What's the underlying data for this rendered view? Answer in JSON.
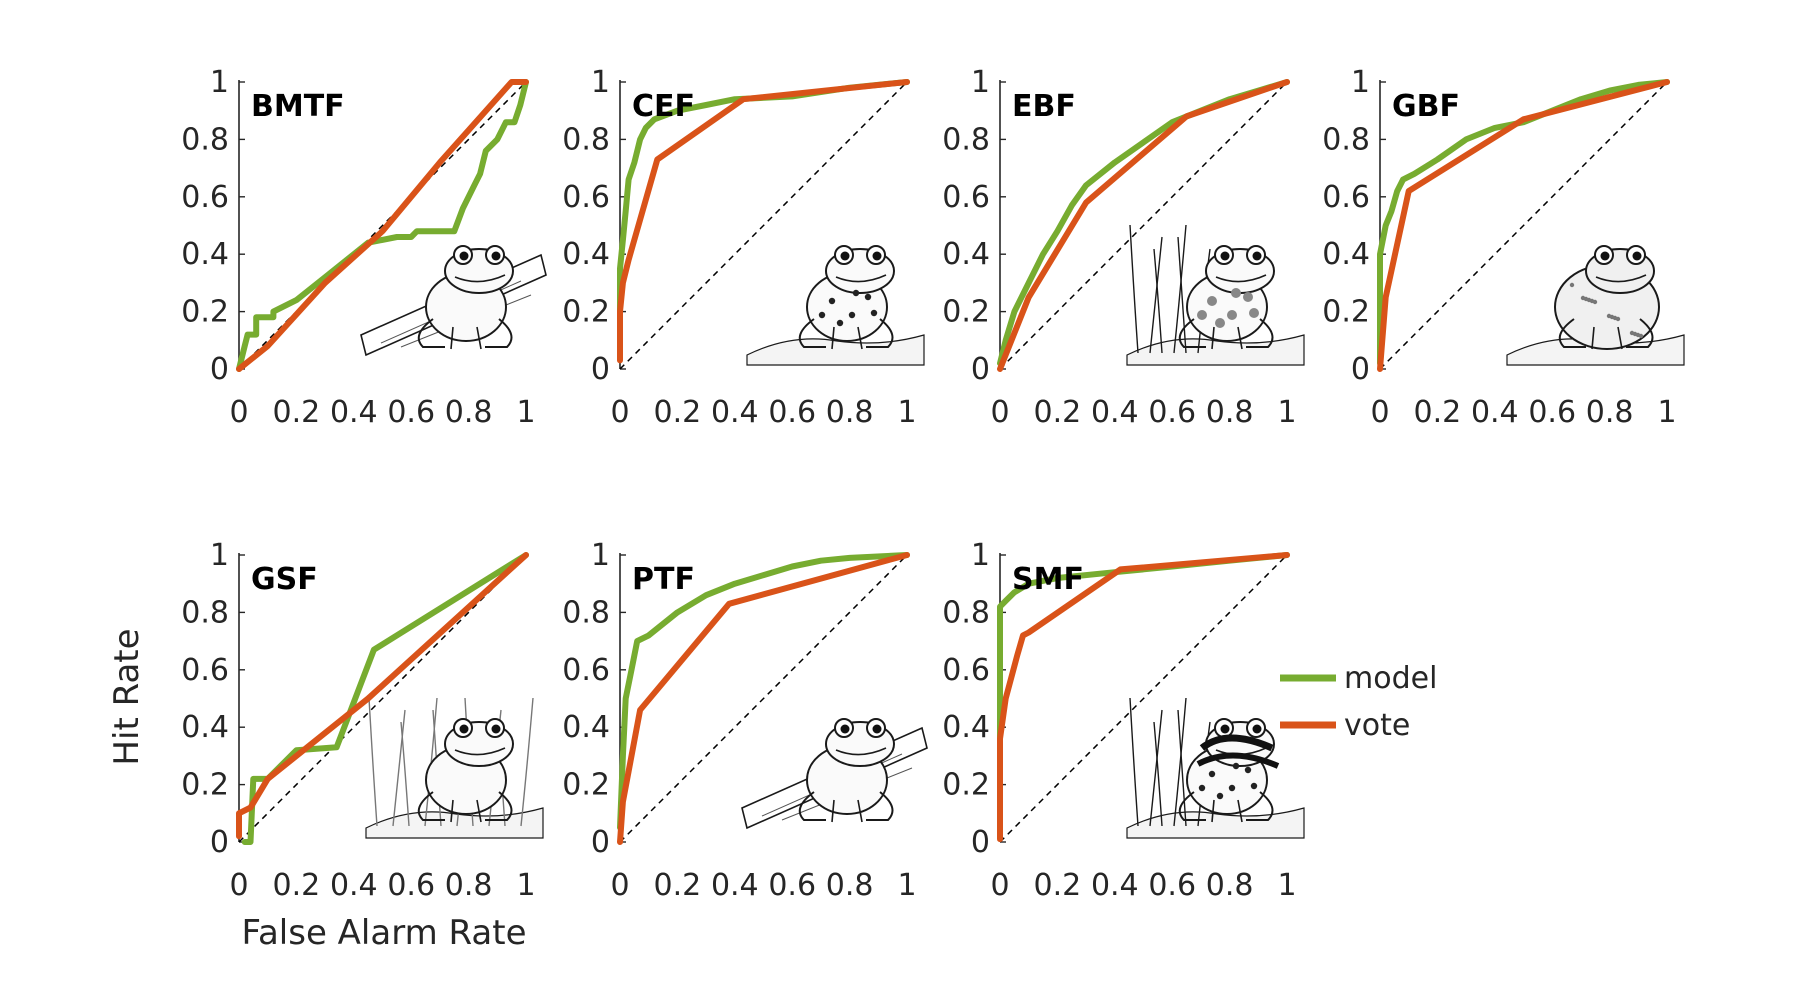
{
  "chart_data": {
    "type": "line",
    "xlabel": "False Alarm Rate",
    "ylabel": "Hit Rate",
    "xlim": [
      0,
      1
    ],
    "ylim": [
      0,
      1
    ],
    "xticks": [
      "0",
      "0.2",
      "0.4",
      "0.6",
      "0.8",
      "1"
    ],
    "yticks": [
      "0",
      "0.2",
      "0.4",
      "0.6",
      "0.8",
      "1"
    ],
    "grid": false,
    "diagonal_reference": "dashed black line from (0,0) to (1,1)",
    "legend": {
      "placement": "right of SMF panel",
      "entries": [
        {
          "label": "model",
          "color": "#77AC30"
        },
        {
          "label": "vote",
          "color": "#D95319"
        }
      ]
    },
    "panels": [
      {
        "title": "BMTF",
        "image": "tree-frog-on-log-sketch",
        "series": [
          {
            "name": "model",
            "color": "#77AC30",
            "points": [
              [
                0,
                0
              ],
              [
                0.02,
                0.08
              ],
              [
                0.03,
                0.12
              ],
              [
                0.06,
                0.12
              ],
              [
                0.06,
                0.18
              ],
              [
                0.12,
                0.18
              ],
              [
                0.12,
                0.2
              ],
              [
                0.2,
                0.24
              ],
              [
                0.3,
                0.32
              ],
              [
                0.4,
                0.4
              ],
              [
                0.45,
                0.44
              ],
              [
                0.55,
                0.46
              ],
              [
                0.6,
                0.46
              ],
              [
                0.62,
                0.48
              ],
              [
                0.75,
                0.48
              ],
              [
                0.78,
                0.56
              ],
              [
                0.82,
                0.64
              ],
              [
                0.84,
                0.68
              ],
              [
                0.86,
                0.76
              ],
              [
                0.9,
                0.8
              ],
              [
                0.93,
                0.86
              ],
              [
                0.96,
                0.86
              ],
              [
                0.98,
                0.92
              ],
              [
                1,
                1
              ]
            ]
          },
          {
            "name": "vote",
            "color": "#D95319",
            "points": [
              [
                0,
                0
              ],
              [
                0.1,
                0.08
              ],
              [
                0.3,
                0.3
              ],
              [
                0.5,
                0.48
              ],
              [
                0.7,
                0.72
              ],
              [
                0.95,
                1
              ],
              [
                1,
                1
              ]
            ]
          }
        ]
      },
      {
        "title": "CEF",
        "image": "spotted-frog-in-grass-sketch",
        "series": [
          {
            "name": "model",
            "color": "#77AC30",
            "points": [
              [
                0,
                0.05
              ],
              [
                0,
                0.35
              ],
              [
                0.01,
                0.45
              ],
              [
                0.02,
                0.55
              ],
              [
                0.03,
                0.66
              ],
              [
                0.05,
                0.72
              ],
              [
                0.07,
                0.8
              ],
              [
                0.09,
                0.84
              ],
              [
                0.12,
                0.87
              ],
              [
                0.2,
                0.9
              ],
              [
                0.3,
                0.92
              ],
              [
                0.4,
                0.94
              ],
              [
                0.6,
                0.95
              ],
              [
                0.8,
                0.98
              ],
              [
                1,
                1
              ]
            ]
          },
          {
            "name": "vote",
            "color": "#D95319",
            "points": [
              [
                0,
                0.03
              ],
              [
                0,
                0.2
              ],
              [
                0.01,
                0.3
              ],
              [
                0.03,
                0.38
              ],
              [
                0.13,
                0.73
              ],
              [
                0.43,
                0.94
              ],
              [
                1,
                1
              ]
            ]
          }
        ]
      },
      {
        "title": "EBF",
        "image": "bullfrog-in-reeds-sketch",
        "series": [
          {
            "name": "model",
            "color": "#77AC30",
            "points": [
              [
                0,
                0.02
              ],
              [
                0.02,
                0.1
              ],
              [
                0.05,
                0.2
              ],
              [
                0.1,
                0.3
              ],
              [
                0.15,
                0.4
              ],
              [
                0.2,
                0.48
              ],
              [
                0.25,
                0.57
              ],
              [
                0.3,
                0.64
              ],
              [
                0.4,
                0.72
              ],
              [
                0.5,
                0.79
              ],
              [
                0.6,
                0.86
              ],
              [
                0.7,
                0.9
              ],
              [
                0.8,
                0.94
              ],
              [
                0.9,
                0.97
              ],
              [
                1,
                1
              ]
            ]
          },
          {
            "name": "vote",
            "color": "#D95319",
            "points": [
              [
                0,
                0
              ],
              [
                0.1,
                0.25
              ],
              [
                0.3,
                0.58
              ],
              [
                0.65,
                0.88
              ],
              [
                1,
                1
              ]
            ]
          }
        ]
      },
      {
        "title": "GBF",
        "image": "toad-in-grass-sketch",
        "series": [
          {
            "name": "model",
            "color": "#77AC30",
            "points": [
              [
                0,
                0.02
              ],
              [
                0,
                0.4
              ],
              [
                0.02,
                0.5
              ],
              [
                0.04,
                0.55
              ],
              [
                0.06,
                0.62
              ],
              [
                0.08,
                0.66
              ],
              [
                0.12,
                0.68
              ],
              [
                0.2,
                0.73
              ],
              [
                0.3,
                0.8
              ],
              [
                0.4,
                0.84
              ],
              [
                0.5,
                0.86
              ],
              [
                0.6,
                0.9
              ],
              [
                0.7,
                0.94
              ],
              [
                0.8,
                0.97
              ],
              [
                0.9,
                0.99
              ],
              [
                1,
                1
              ]
            ]
          },
          {
            "name": "vote",
            "color": "#D95319",
            "points": [
              [
                0,
                0
              ],
              [
                0.02,
                0.25
              ],
              [
                0.1,
                0.62
              ],
              [
                0.5,
                0.87
              ],
              [
                1,
                1
              ]
            ]
          }
        ]
      },
      {
        "title": "GSF",
        "image": "frog-among-ferns-sketch",
        "series": [
          {
            "name": "model",
            "color": "#77AC30",
            "points": [
              [
                0.02,
                0
              ],
              [
                0.04,
                0
              ],
              [
                0.05,
                0.22
              ],
              [
                0.1,
                0.22
              ],
              [
                0.2,
                0.32
              ],
              [
                0.34,
                0.33
              ],
              [
                0.47,
                0.67
              ],
              [
                1,
                1
              ]
            ]
          },
          {
            "name": "vote",
            "color": "#D95319",
            "points": [
              [
                0,
                0.02
              ],
              [
                0,
                0.1
              ],
              [
                0.04,
                0.12
              ],
              [
                0.1,
                0.22
              ],
              [
                0.45,
                0.5
              ],
              [
                1,
                1
              ]
            ]
          }
        ]
      },
      {
        "title": "PTF",
        "image": "tree-frog-on-branch-sketch",
        "series": [
          {
            "name": "model",
            "color": "#77AC30",
            "points": [
              [
                0,
                0.05
              ],
              [
                0.01,
                0.3
              ],
              [
                0.02,
                0.5
              ],
              [
                0.04,
                0.6
              ],
              [
                0.06,
                0.7
              ],
              [
                0.1,
                0.72
              ],
              [
                0.2,
                0.8
              ],
              [
                0.3,
                0.86
              ],
              [
                0.4,
                0.9
              ],
              [
                0.5,
                0.93
              ],
              [
                0.6,
                0.96
              ],
              [
                0.7,
                0.98
              ],
              [
                0.8,
                0.99
              ],
              [
                1,
                1
              ]
            ]
          },
          {
            "name": "vote",
            "color": "#D95319",
            "points": [
              [
                0,
                0
              ],
              [
                0.01,
                0.14
              ],
              [
                0.07,
                0.46
              ],
              [
                0.38,
                0.83
              ],
              [
                1,
                1
              ]
            ]
          }
        ]
      },
      {
        "title": "SMF",
        "image": "striped-frog-sketch",
        "series": [
          {
            "name": "model",
            "color": "#77AC30",
            "points": [
              [
                0,
                0.02
              ],
              [
                0,
                0.82
              ],
              [
                0.02,
                0.84
              ],
              [
                0.05,
                0.87
              ],
              [
                0.1,
                0.9
              ],
              [
                0.2,
                0.92
              ],
              [
                0.4,
                0.94
              ],
              [
                0.6,
                0.96
              ],
              [
                0.8,
                0.98
              ],
              [
                1,
                1
              ]
            ]
          },
          {
            "name": "vote",
            "color": "#D95319",
            "points": [
              [
                0,
                0.01
              ],
              [
                0,
                0.36
              ],
              [
                0.02,
                0.5
              ],
              [
                0.06,
                0.65
              ],
              [
                0.08,
                0.72
              ],
              [
                0.1,
                0.73
              ],
              [
                0.42,
                0.95
              ],
              [
                1,
                1
              ]
            ]
          }
        ]
      }
    ]
  }
}
